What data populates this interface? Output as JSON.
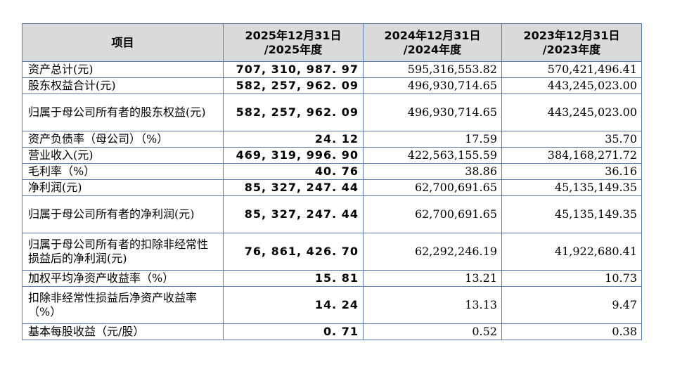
{
  "table": {
    "headers": [
      {
        "line1": "项目",
        "line2": ""
      },
      {
        "line1": "2025年12月31日",
        "line2": "/2025年度"
      },
      {
        "line1": "2024年12月31日",
        "line2": "/2024年度"
      },
      {
        "line1": "2023年12月31日",
        "line2": "/2023年度"
      }
    ],
    "rows": [
      {
        "label": "资产总计(元)",
        "v2025": "707, 310, 987. 97",
        "v2024": "595,316,553.82",
        "v2023": "570,421,496.41"
      },
      {
        "label": "股东权益合计(元)",
        "v2025": "582, 257, 962. 09",
        "v2024": "496,930,714.65",
        "v2023": "443,245,023.00"
      },
      {
        "label": "归属于母公司所有者的股东权益(元)",
        "v2025": "582, 257, 962. 09",
        "v2024": "496,930,714.65",
        "v2023": "443,245,023.00"
      },
      {
        "label": "资产负债率（母公司）（%）",
        "v2025": "24. 12",
        "v2024": "17.59",
        "v2023": "35.70"
      },
      {
        "label": "营业收入(元)",
        "v2025": "469, 319, 996. 90",
        "v2024": "422,563,155.59",
        "v2023": "384,168,271.72"
      },
      {
        "label": "毛利率（%）",
        "v2025": "40. 76",
        "v2024": "38.86",
        "v2023": "36.16"
      },
      {
        "label": "净利润(元)",
        "v2025": "85, 327, 247. 44",
        "v2024": "62,700,691.65",
        "v2023": "45,135,149.35"
      },
      {
        "label": "归属于母公司所有者的净利润(元)",
        "v2025": "85, 327, 247. 44",
        "v2024": "62,700,691.65",
        "v2023": "45,135,149.35"
      },
      {
        "label": "归属于母公司所有者的扣除非经常性损益后的净利润(元)",
        "v2025": "76, 861, 426. 70",
        "v2024": "62,292,246.19",
        "v2023": "41,922,680.41"
      },
      {
        "label": "加权平均净资产收益率（%）",
        "v2025": "15. 81",
        "v2024": "13.21",
        "v2023": "10.73"
      },
      {
        "label": "扣除非经常性损益后净资产收益率（%）",
        "v2025": "14. 24",
        "v2024": "13.13",
        "v2023": "9.47"
      },
      {
        "label": "基本每股收益（元/股）",
        "v2025": "0. 71",
        "v2024": "0.52",
        "v2023": "0.38"
      }
    ]
  }
}
